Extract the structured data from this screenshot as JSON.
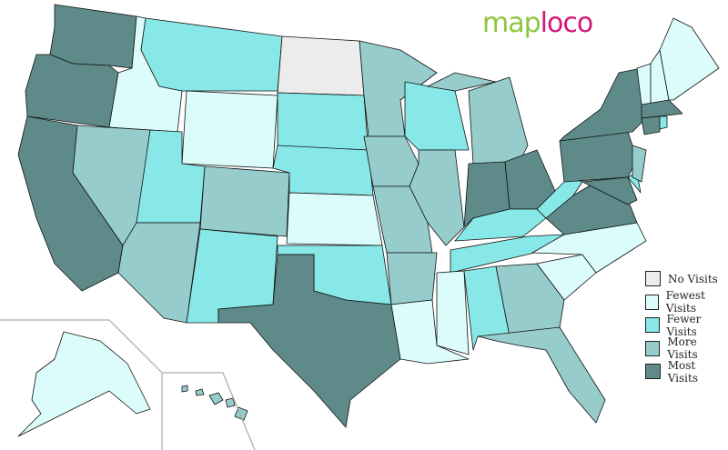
{
  "logo": {
    "part1": "map",
    "part2": "loco",
    "color1": "#8dc63f",
    "color2": "#d6157a"
  },
  "categories": {
    "none": {
      "label": "No Visits",
      "color": "#ececec"
    },
    "fewest": {
      "label": "Fewest Visits",
      "color": "#dcfcfc"
    },
    "fewer": {
      "label": "Fewer Visits",
      "color": "#88e8e8"
    },
    "more": {
      "label": "More Visits",
      "color": "#96cccc"
    },
    "most": {
      "label": "Most Visits",
      "color": "#5f8a8a"
    }
  },
  "legend_order": [
    "none",
    "fewest",
    "fewer",
    "more",
    "most"
  ],
  "states": {
    "WA": "most",
    "OR": "most",
    "CA": "most",
    "ID": "fewest",
    "NV": "more",
    "MT": "fewer",
    "WY": "fewest",
    "UT": "fewer",
    "AZ": "more",
    "CO": "more",
    "NM": "fewer",
    "ND": "none",
    "SD": "fewer",
    "NE": "fewer",
    "KS": "fewest",
    "OK": "fewer",
    "TX": "most",
    "MN": "more",
    "IA": "more",
    "MO": "more",
    "AR": "more",
    "LA": "fewest",
    "WI": "fewer",
    "IL": "more",
    "MI": "more",
    "MI-UP": "more",
    "IN": "most",
    "OH": "most",
    "KY": "fewer",
    "TN": "fewer",
    "MS": "fewest",
    "AL": "fewer",
    "GA": "more",
    "FL": "more",
    "SC": "fewest",
    "NC": "fewest",
    "VA": "most",
    "WV": "fewer",
    "PA": "most",
    "NY": "most",
    "MD": "most",
    "DE": "fewer",
    "NJ": "more",
    "VT": "fewest",
    "NH": "fewest",
    "ME": "fewest",
    "MA": "most",
    "CT": "most",
    "RI": "fewer",
    "AK": "fewest",
    "HI": "more"
  }
}
